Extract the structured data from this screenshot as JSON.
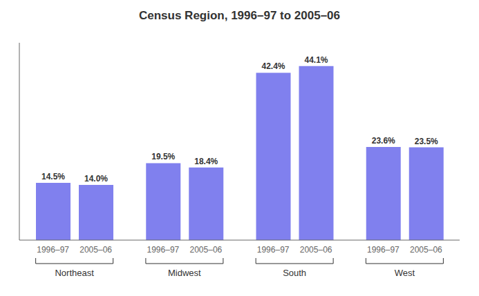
{
  "chart_data": {
    "type": "bar",
    "title": "Census Region, 1996–97 to 2005–06",
    "categories": [
      "Northeast",
      "Midwest",
      "South",
      "West"
    ],
    "series": [
      {
        "name": "1996–97",
        "color": "#8080ee",
        "values": [
          14.5,
          19.5,
          42.4,
          23.6
        ],
        "value_labels": [
          "14.5%",
          "19.5%",
          "42.4%",
          "23.6%"
        ]
      },
      {
        "name": "2005–06",
        "color": "#8080ee",
        "values": [
          14.0,
          18.4,
          44.1,
          23.5
        ],
        "value_labels": [
          "14.0%",
          "18.4%",
          "44.1%",
          "23.5%"
        ]
      }
    ],
    "ylim": [
      0,
      50
    ],
    "data_labels": true,
    "tick_labels": "x",
    "grid": false
  }
}
